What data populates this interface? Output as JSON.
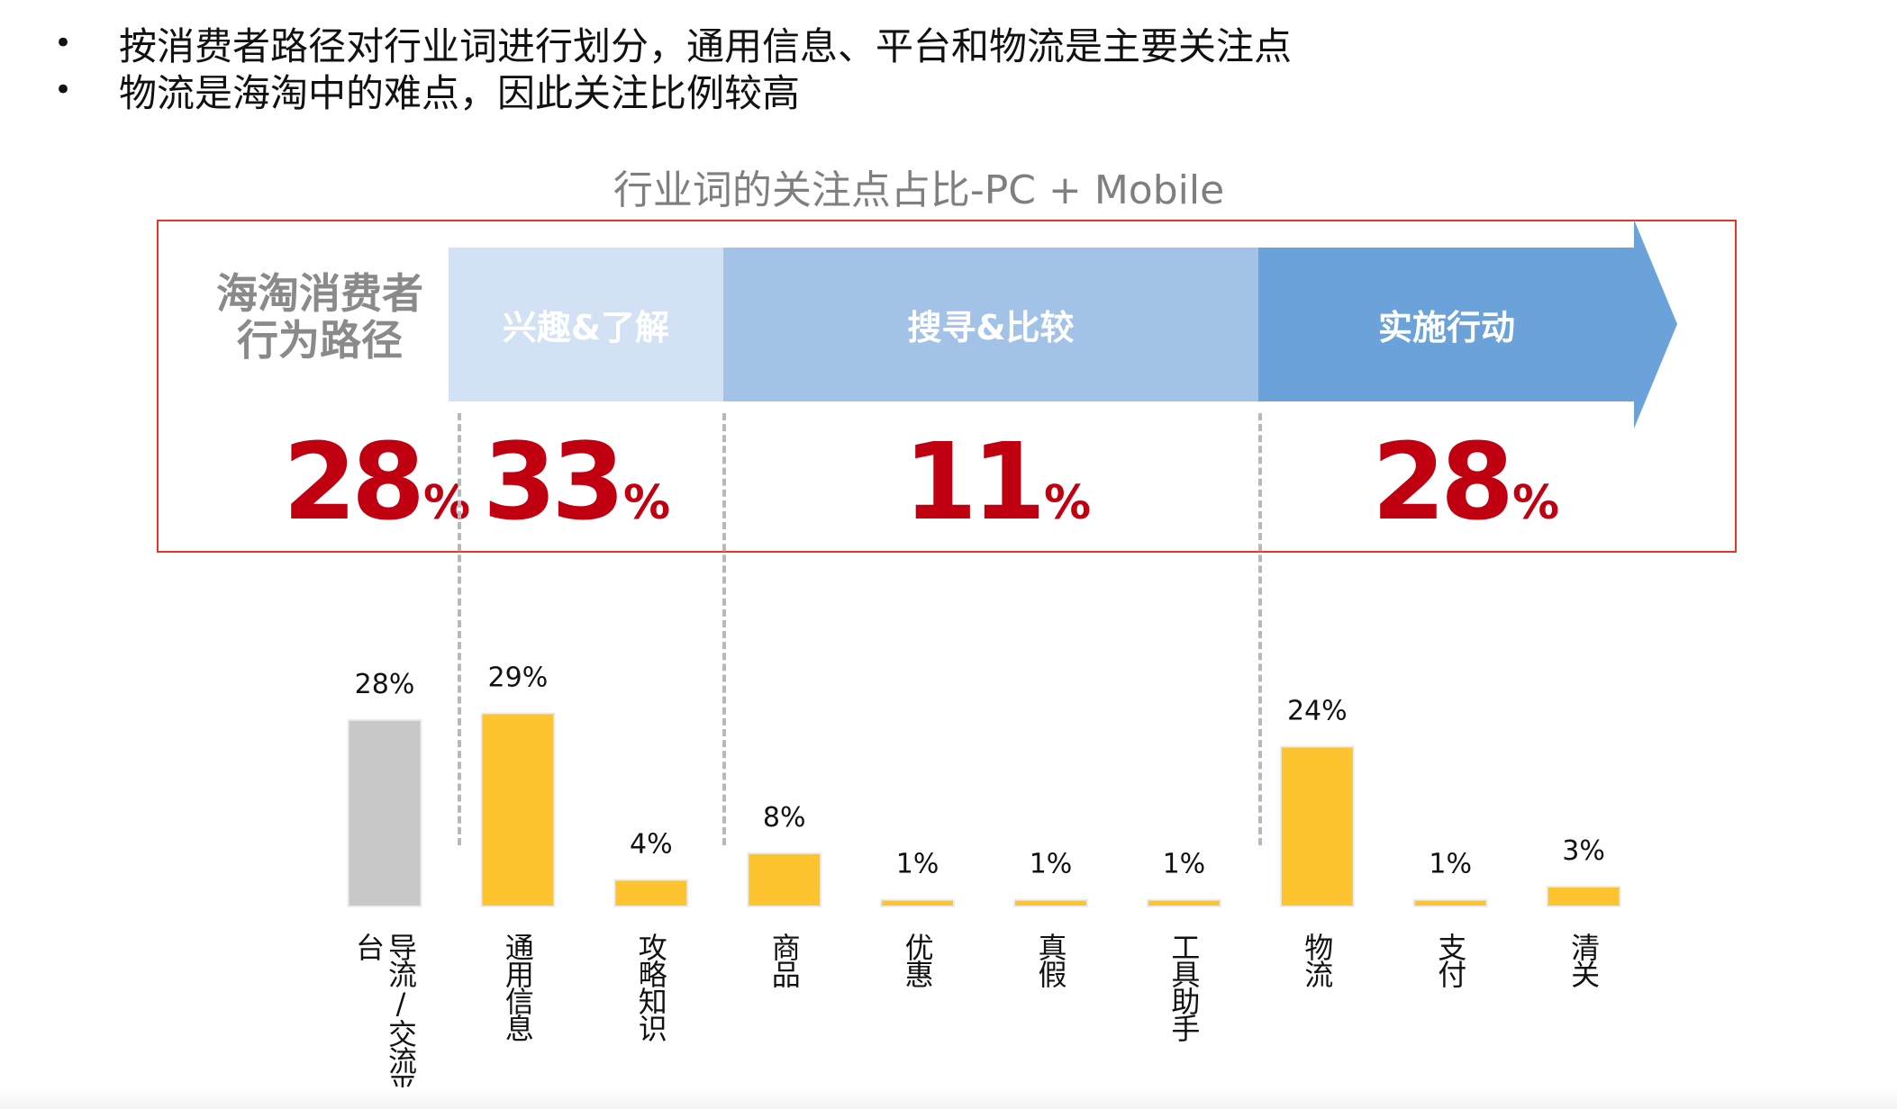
{
  "bullets": [
    "按消费者路径对行业词进行划分，通用信息、平台和物流是主要关注点",
    "物流是海淘中的难点，因此关注比例较高"
  ],
  "bullet_symbol": "•",
  "path": {
    "label_line1": "海淘消费者",
    "label_line2": "行为路径",
    "stages": [
      {
        "label": "兴趣&了解",
        "color": "#d2e1f3",
        "share": "33",
        "unit": "%"
      },
      {
        "label": "搜寻&比较",
        "color": "#a2c3e7",
        "share": "11",
        "unit": "%"
      },
      {
        "label": "实施行动",
        "color": "#6aa2d9",
        "share": "28",
        "unit": "%"
      }
    ],
    "platform_share": "28",
    "platform_unit": "%"
  },
  "colors": {
    "accent_red": "#c00010",
    "frame": "#e8342a",
    "bar_yellow": "#fec42f",
    "bar_gray": "#c8c8c8"
  },
  "chart_data": {
    "type": "bar",
    "title": "行业词的关注点占比-PC + Mobile",
    "categories": [
      "导流/交流平台",
      "通用信息",
      "攻略知识",
      "商品",
      "优惠",
      "真假",
      "工具助手",
      "物流",
      "支付",
      "清关"
    ],
    "values": [
      28,
      29,
      4,
      8,
      1,
      1,
      1,
      24,
      1,
      3
    ],
    "value_labels": [
      "28%",
      "29%",
      "4%",
      "8%",
      "1%",
      "1%",
      "1%",
      "24%",
      "1%",
      "3%"
    ],
    "bar_colors": [
      "#c8c8c8",
      "#fec42f",
      "#fec42f",
      "#fec42f",
      "#fec42f",
      "#fec42f",
      "#fec42f",
      "#fec42f",
      "#fec42f",
      "#fec42f"
    ],
    "unit": "%",
    "grid": false,
    "legend": "none"
  }
}
